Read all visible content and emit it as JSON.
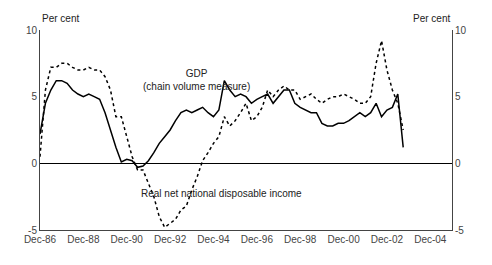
{
  "chart_data": {
    "type": "line",
    "x": [
      1986,
      1986.25,
      1986.5,
      1986.75,
      1987,
      1987.25,
      1987.5,
      1987.75,
      1988,
      1988.25,
      1988.5,
      1988.75,
      1989,
      1989.25,
      1989.5,
      1989.75,
      1990,
      1990.25,
      1990.5,
      1990.75,
      1991,
      1991.25,
      1991.5,
      1991.75,
      1992,
      1992.25,
      1992.5,
      1992.75,
      1993,
      1993.25,
      1993.5,
      1993.75,
      1994,
      1994.25,
      1994.5,
      1994.75,
      1995,
      1995.25,
      1995.5,
      1995.75,
      1996,
      1996.25,
      1996.5,
      1996.75,
      1997,
      1997.25,
      1997.5,
      1997.75,
      1998,
      1998.25,
      1998.5,
      1998.75,
      1999,
      1999.25,
      1999.5,
      1999.75,
      2000,
      2000.25,
      2000.5,
      2000.75,
      2001,
      2001.25,
      2001.5,
      2001.75,
      2002,
      2002.25,
      2002.5,
      2002.75
    ],
    "series": [
      {
        "color": "#000000",
        "line_style": "solid",
        "values": [
          2.2,
          4.5,
          5.5,
          6.2,
          6.2,
          6.0,
          5.5,
          5.2,
          5.0,
          5.2,
          5.0,
          4.8,
          3.8,
          2.5,
          1.2,
          0.1,
          0.3,
          0.2,
          -0.3,
          -0.2,
          0.2,
          0.8,
          1.5,
          2.0,
          2.5,
          3.2,
          3.8,
          4.0,
          3.8,
          4.0,
          4.2,
          3.8,
          3.5,
          4.0,
          6.2,
          5.5,
          5.0,
          5.2,
          5.0,
          4.5,
          4.8,
          5.0,
          5.2,
          4.5,
          5.0,
          5.5,
          5.5,
          4.5,
          4.2,
          4.0,
          3.8,
          3.8,
          3.0,
          2.8,
          2.8,
          3.0,
          3.0,
          3.2,
          3.5,
          3.8,
          3.5,
          3.8,
          4.5,
          3.5,
          4.0,
          4.2,
          5.2,
          1.2
        ]
      },
      {
        "color": "#000000",
        "line_style": "dotted",
        "values": [
          0.5,
          5.5,
          7.2,
          7.2,
          7.5,
          7.5,
          7.2,
          7.0,
          7.0,
          7.2,
          7.0,
          7.0,
          6.5,
          5.5,
          3.5,
          3.5,
          2.0,
          0.5,
          -0.5,
          -0.5,
          -1.5,
          -2.5,
          -4.0,
          -4.8,
          -4.5,
          -4.2,
          -3.5,
          -3.2,
          -2.0,
          -1.0,
          0.2,
          0.8,
          1.5,
          2.0,
          3.5,
          2.8,
          3.2,
          3.8,
          4.5,
          3.2,
          3.5,
          4.2,
          5.5,
          5.0,
          5.5,
          5.8,
          5.5,
          5.5,
          4.8,
          5.0,
          5.2,
          4.8,
          4.5,
          4.8,
          5.0,
          5.0,
          5.2,
          5.0,
          4.8,
          4.5,
          4.5,
          5.0,
          7.5,
          9.2,
          7.0,
          5.5,
          4.5,
          2.5
        ]
      }
    ],
    "xlim": [
      1986,
      2005
    ],
    "xticks": [
      {
        "value": 1986,
        "label": "Dec-86"
      },
      {
        "value": 1988,
        "label": "Dec-88"
      },
      {
        "value": 1990,
        "label": "Dec-90"
      },
      {
        "value": 1992,
        "label": "Dec-92"
      },
      {
        "value": 1994,
        "label": "Dec-94"
      },
      {
        "value": 1996,
        "label": "Dec-96"
      },
      {
        "value": 1998,
        "label": "Dec-98"
      },
      {
        "value": 2000,
        "label": "Dec-00"
      },
      {
        "value": 2002,
        "label": "Dec-02"
      },
      {
        "value": 2004,
        "label": "Dec-04"
      }
    ],
    "ylim": [
      -5,
      10
    ],
    "yticks": [
      -5,
      0,
      5,
      10
    ],
    "y2lim": [
      -5,
      10
    ],
    "y2ticks": [
      -5,
      0,
      5,
      10
    ],
    "ylabel": "Per cent",
    "y2label": "Per cent",
    "annotations": [
      {
        "text": "GDP\n(chain volume measure)"
      },
      {
        "text": "Real net national disposable income"
      }
    ],
    "grid": false
  }
}
